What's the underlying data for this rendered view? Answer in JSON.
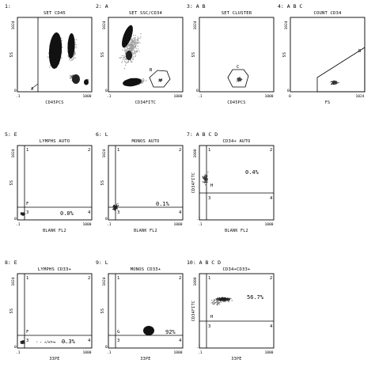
{
  "panels": [
    {
      "label": "1:",
      "title": "SET CD45",
      "xlabel": "CD45PCS",
      "ylabel": "SS",
      "xticks": [
        ".1",
        "1000"
      ],
      "yticks": [
        "1024",
        "0"
      ],
      "gates": [
        "A"
      ],
      "quadrants": [],
      "percent": ""
    },
    {
      "label": "2: A",
      "title": "SET SSC/CD34",
      "xlabel": "CD34FITC",
      "ylabel": "SS",
      "xticks": [
        ".1",
        "1000"
      ],
      "yticks": [
        "1024",
        "0"
      ],
      "gates": [
        "B"
      ],
      "quadrants": [],
      "percent": ""
    },
    {
      "label": "3: A B",
      "title": "SET CLUSTER",
      "xlabel": "CD45PCS",
      "ylabel": "SS",
      "xticks": [
        ".1",
        "1000"
      ],
      "yticks": [
        "1024",
        "0"
      ],
      "gates": [
        "C"
      ],
      "quadrants": [],
      "percent": ""
    },
    {
      "label": "4: A B C",
      "title": "COUNT CD34",
      "xlabel": "FS",
      "ylabel": "SS",
      "xticks": [
        "0",
        "1024"
      ],
      "yticks": [
        "1024",
        "0"
      ],
      "gates": [
        "B"
      ],
      "quadrants": [],
      "percent": ""
    },
    {
      "label": "5: E",
      "title": "LYMPHS AUTO",
      "xlabel": "BLANK FL2",
      "ylabel": "SS",
      "xticks": [
        ".1",
        "1000"
      ],
      "yticks": [
        "1024",
        "0"
      ],
      "gates": [
        "F"
      ],
      "quadrants": [
        "1",
        "2",
        "3",
        "4"
      ],
      "percent": "0.0%"
    },
    {
      "label": "6: L",
      "title": "MONOS AUTO",
      "xlabel": "BLANK FL2",
      "ylabel": "SS",
      "xticks": [
        ".1",
        "1000"
      ],
      "yticks": [
        "1024",
        "0"
      ],
      "gates": [
        "G"
      ],
      "quadrants": [
        "1",
        "2",
        "3",
        "4"
      ],
      "percent": "0.1%"
    },
    {
      "label": "7: A B C D",
      "title": "CD34+ AUTO",
      "xlabel": "BLANK FL2",
      "ylabel": "CD34FITC",
      "xticks": [
        ".1",
        "1000"
      ],
      "yticks": [
        "1000",
        ".1"
      ],
      "gates": [
        "H"
      ],
      "quadrants": [
        "1",
        "2",
        "3",
        "4"
      ],
      "percent": "0.4%"
    },
    {
      "label": "8: E",
      "title": "LYMPHS CD33+",
      "xlabel": "33PE",
      "ylabel": "SS",
      "xticks": [
        ".1",
        "1000"
      ],
      "yticks": [
        "1024",
        "0"
      ],
      "gates": [
        "F"
      ],
      "quadrants": [
        "1",
        "2",
        "3",
        "4"
      ],
      "percent": "0.3%"
    },
    {
      "label": "9: L",
      "title": "MONOS CD33+",
      "xlabel": "33PE",
      "ylabel": "SS",
      "xticks": [
        ".1",
        "1000"
      ],
      "yticks": [
        "1024",
        "0"
      ],
      "gates": [
        "G"
      ],
      "quadrants": [
        "1",
        "2",
        "3",
        "4"
      ],
      "percent": "92%"
    },
    {
      "label": "10: A B C D",
      "title": "CD34+CD33+",
      "xlabel": "33PE",
      "ylabel": "CD34FITC",
      "xticks": [
        ".1",
        "1000"
      ],
      "yticks": [
        "1000",
        ".1"
      ],
      "gates": [
        "H"
      ],
      "quadrants": [
        "1",
        "2",
        "3",
        "4"
      ],
      "percent": "56.7%"
    }
  ]
}
